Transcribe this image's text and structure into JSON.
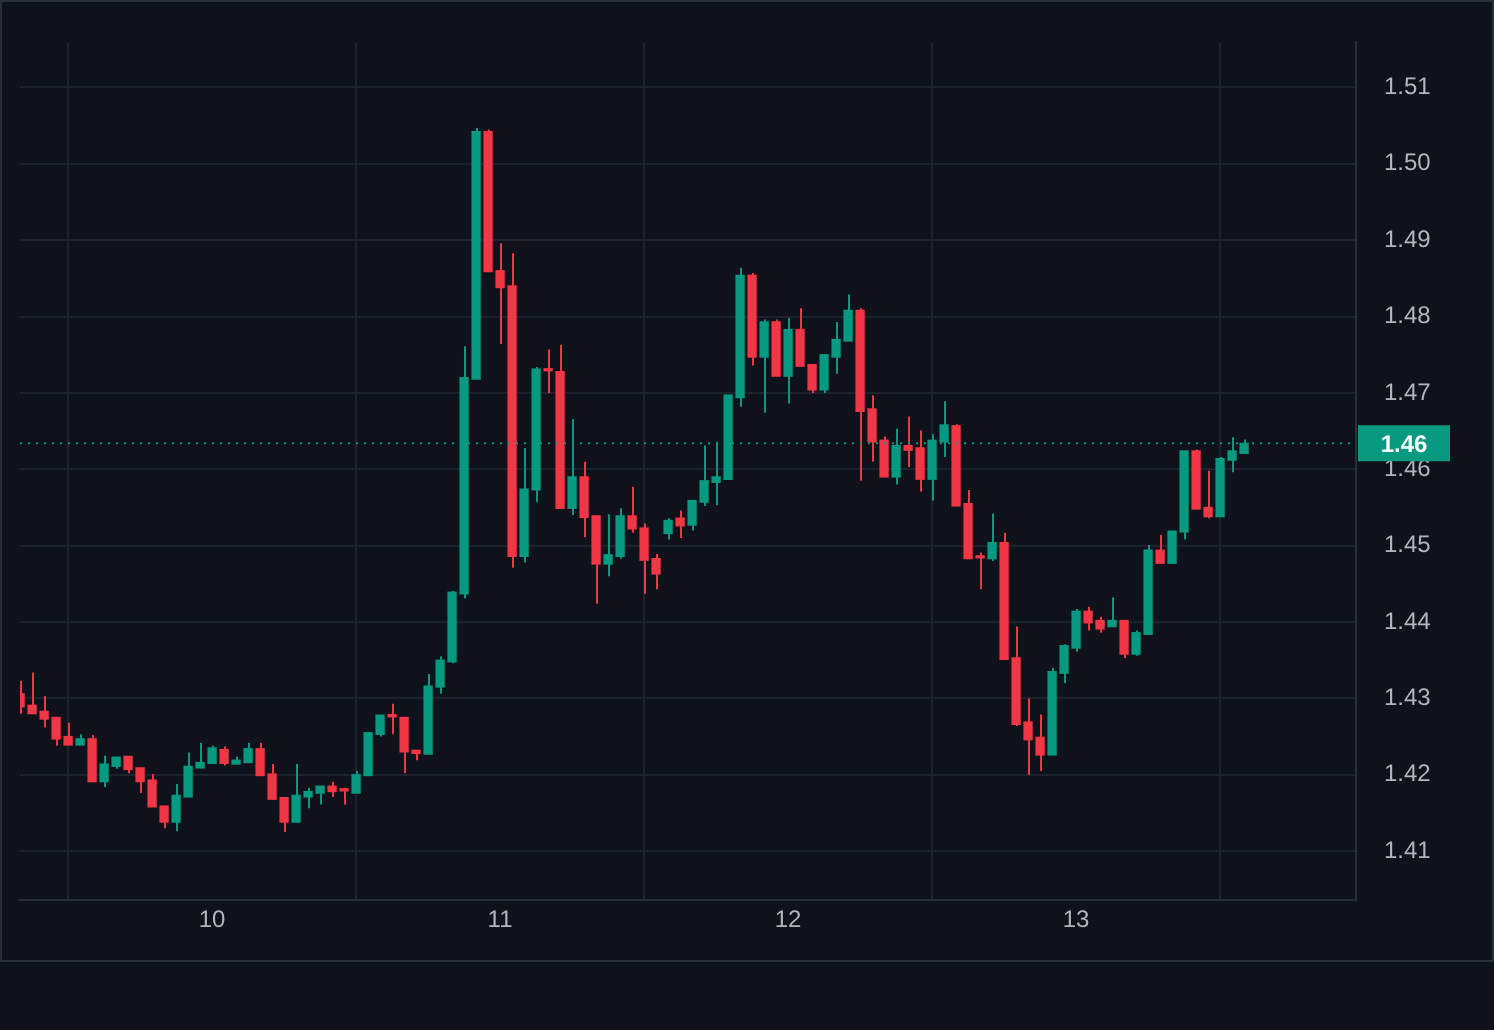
{
  "chart_data": {
    "type": "candlestick",
    "x": [
      9.3333,
      9.375,
      9.4167,
      9.4583,
      9.5,
      9.5417,
      9.5833,
      9.625,
      9.6667,
      9.7083,
      9.75,
      9.7917,
      9.8333,
      9.875,
      9.9167,
      9.9583,
      10,
      10.0417,
      10.0833,
      10.125,
      10.1667,
      10.2083,
      10.25,
      10.2917,
      10.3333,
      10.375,
      10.4167,
      10.4583,
      10.5,
      10.5417,
      10.5833,
      10.625,
      10.6667,
      10.7083,
      10.75,
      10.7917,
      10.8333,
      10.875,
      10.9167,
      10.9583,
      11,
      11.0417,
      11.0833,
      11.125,
      11.1667,
      11.2083,
      11.25,
      11.2917,
      11.3333,
      11.375,
      11.4167,
      11.4583,
      11.5,
      11.5417,
      11.5833,
      11.625,
      11.6667,
      11.7083,
      11.75,
      11.7917,
      11.8333,
      11.875,
      11.9167,
      11.9583,
      12,
      12.0417,
      12.0833,
      12.125,
      12.1667,
      12.2083,
      12.25,
      12.2917,
      12.3333,
      12.375,
      12.4167,
      12.4583,
      12.5,
      12.5417,
      12.5833,
      12.625,
      12.6667,
      12.7083,
      12.75,
      12.7917,
      12.8333,
      12.875,
      12.9167,
      12.9583,
      13,
      13.0417,
      13.0833,
      13.125,
      13.1667,
      13.2083,
      13.25,
      13.2917,
      13.3333,
      13.375,
      13.4167,
      13.4583,
      13.5,
      13.5417,
      13.5833
    ],
    "ohlc": [
      [
        1.4306,
        1.4323,
        1.428,
        1.4289
      ],
      [
        1.4291,
        1.4334,
        1.428,
        1.428
      ],
      [
        1.4283,
        1.4303,
        1.4262,
        1.4273
      ],
      [
        1.4275,
        1.4275,
        1.4238,
        1.4247
      ],
      [
        1.425,
        1.4268,
        1.4239,
        1.4239
      ],
      [
        1.4239,
        1.4253,
        1.4239,
        1.4247
      ],
      [
        1.4247,
        1.4252,
        1.4191,
        1.4191
      ],
      [
        1.4191,
        1.4225,
        1.4184,
        1.4214
      ],
      [
        1.4211,
        1.4223,
        1.4208,
        1.4223
      ],
      [
        1.4224,
        1.4224,
        1.4202,
        1.4207
      ],
      [
        1.4209,
        1.4209,
        1.4176,
        1.4191
      ],
      [
        1.4193,
        1.4201,
        1.4158,
        1.4158
      ],
      [
        1.4159,
        1.4159,
        1.413,
        1.4138
      ],
      [
        1.4138,
        1.4188,
        1.4126,
        1.4173
      ],
      [
        1.4171,
        1.4229,
        1.4171,
        1.4211
      ],
      [
        1.4209,
        1.4242,
        1.4209,
        1.4216
      ],
      [
        1.4215,
        1.4238,
        1.4215,
        1.4235
      ],
      [
        1.4233,
        1.4237,
        1.4212,
        1.4215
      ],
      [
        1.4214,
        1.4224,
        1.4214,
        1.4219
      ],
      [
        1.4216,
        1.4242,
        1.4216,
        1.4234
      ],
      [
        1.4234,
        1.4242,
        1.4199,
        1.4199
      ],
      [
        1.4201,
        1.4214,
        1.4168,
        1.4168
      ],
      [
        1.417,
        1.417,
        1.4125,
        1.4138
      ],
      [
        1.4138,
        1.4214,
        1.4138,
        1.4173
      ],
      [
        1.4171,
        1.4183,
        1.4156,
        1.4178
      ],
      [
        1.4176,
        1.4185,
        1.4161,
        1.4185
      ],
      [
        1.4185,
        1.4191,
        1.4171,
        1.4178
      ],
      [
        1.4181,
        1.4183,
        1.4161,
        1.4179
      ],
      [
        1.4176,
        1.4205,
        1.4176,
        1.42
      ],
      [
        1.4199,
        1.4256,
        1.4199,
        1.4255
      ],
      [
        1.4253,
        1.4278,
        1.425,
        1.4278
      ],
      [
        1.4277,
        1.4293,
        1.4253,
        1.4276
      ],
      [
        1.4275,
        1.4275,
        1.4202,
        1.423
      ],
      [
        1.4232,
        1.4232,
        1.4219,
        1.4228
      ],
      [
        1.4227,
        1.4332,
        1.4227,
        1.4316
      ],
      [
        1.4315,
        1.4355,
        1.4306,
        1.435
      ],
      [
        1.4348,
        1.4441,
        1.4346,
        1.4439
      ],
      [
        1.4437,
        1.4761,
        1.4431,
        1.472
      ],
      [
        1.4718,
        1.5047,
        1.4718,
        1.5042
      ],
      [
        1.5042,
        1.5045,
        1.4859,
        1.4859
      ],
      [
        1.486,
        1.4896,
        1.4764,
        1.4838
      ],
      [
        1.484,
        1.4883,
        1.4471,
        1.4486
      ],
      [
        1.4486,
        1.4628,
        1.4478,
        1.4574
      ],
      [
        1.4573,
        1.4734,
        1.4557,
        1.4731
      ],
      [
        1.4731,
        1.4757,
        1.47,
        1.4729
      ],
      [
        1.4728,
        1.4763,
        1.4549,
        1.4549
      ],
      [
        1.4549,
        1.4666,
        1.454,
        1.459
      ],
      [
        1.459,
        1.461,
        1.4511,
        1.4537
      ],
      [
        1.4539,
        1.4539,
        1.4424,
        1.4476
      ],
      [
        1.4476,
        1.4541,
        1.446,
        1.4488
      ],
      [
        1.4486,
        1.4549,
        1.4483,
        1.4539
      ],
      [
        1.4539,
        1.4577,
        1.4517,
        1.4522
      ],
      [
        1.4523,
        1.4529,
        1.4437,
        1.4481
      ],
      [
        1.4483,
        1.4489,
        1.4443,
        1.4463
      ],
      [
        1.4516,
        1.4536,
        1.4508,
        1.4533
      ],
      [
        1.4536,
        1.4546,
        1.451,
        1.4526
      ],
      [
        1.4527,
        1.4559,
        1.452,
        1.4559
      ],
      [
        1.4557,
        1.4631,
        1.4552,
        1.4585
      ],
      [
        1.4583,
        1.4636,
        1.4553,
        1.459
      ],
      [
        1.4587,
        1.4697,
        1.4587,
        1.4697
      ],
      [
        1.4694,
        1.4864,
        1.4682,
        1.4854
      ],
      [
        1.4854,
        1.4857,
        1.4736,
        1.4747
      ],
      [
        1.4747,
        1.4796,
        1.4674,
        1.4793
      ],
      [
        1.4793,
        1.4796,
        1.4722,
        1.4722
      ],
      [
        1.4722,
        1.4798,
        1.4686,
        1.4783
      ],
      [
        1.4783,
        1.4811,
        1.4735,
        1.4735
      ],
      [
        1.4737,
        1.4737,
        1.47,
        1.4704
      ],
      [
        1.4704,
        1.475,
        1.47,
        1.475
      ],
      [
        1.4747,
        1.4793,
        1.4725,
        1.477
      ],
      [
        1.4768,
        1.4829,
        1.4768,
        1.4808
      ],
      [
        1.4808,
        1.4811,
        1.4585,
        1.4676
      ],
      [
        1.4679,
        1.4697,
        1.461,
        1.4636
      ],
      [
        1.4638,
        1.4643,
        1.459,
        1.459
      ],
      [
        1.459,
        1.4653,
        1.458,
        1.4631
      ],
      [
        1.4631,
        1.4669,
        1.4603,
        1.4625
      ],
      [
        1.4628,
        1.4651,
        1.4571,
        1.4587
      ],
      [
        1.4587,
        1.4646,
        1.4559,
        1.4638
      ],
      [
        1.4636,
        1.4689,
        1.4616,
        1.4658
      ],
      [
        1.4657,
        1.4659,
        1.4552,
        1.4552
      ],
      [
        1.4555,
        1.4573,
        1.4483,
        1.4483
      ],
      [
        1.4485,
        1.4491,
        1.4443,
        1.4484
      ],
      [
        1.4483,
        1.4542,
        1.448,
        1.4504
      ],
      [
        1.4504,
        1.4517,
        1.4351,
        1.4351
      ],
      [
        1.4353,
        1.4394,
        1.4264,
        1.4266
      ],
      [
        1.4269,
        1.43,
        1.42,
        1.4246
      ],
      [
        1.4249,
        1.4279,
        1.4205,
        1.4226
      ],
      [
        1.4226,
        1.434,
        1.4226,
        1.4335
      ],
      [
        1.4333,
        1.4371,
        1.432,
        1.4369
      ],
      [
        1.4366,
        1.4417,
        1.4361,
        1.4414
      ],
      [
        1.4414,
        1.442,
        1.4389,
        1.4399
      ],
      [
        1.4402,
        1.4407,
        1.4386,
        1.4391
      ],
      [
        1.4394,
        1.4432,
        1.4394,
        1.4402
      ],
      [
        1.4402,
        1.4402,
        1.4353,
        1.4358
      ],
      [
        1.4358,
        1.4389,
        1.4356,
        1.4386
      ],
      [
        1.4384,
        1.4501,
        1.4384,
        1.4494
      ],
      [
        1.4494,
        1.4514,
        1.4477,
        1.4477
      ],
      [
        1.4477,
        1.4519,
        1.4477,
        1.4519
      ],
      [
        1.4518,
        1.4624,
        1.4508,
        1.4624
      ],
      [
        1.4624,
        1.4626,
        1.4548,
        1.4548
      ],
      [
        1.455,
        1.4598,
        1.4536,
        1.4538
      ],
      [
        1.4538,
        1.4616,
        1.4538,
        1.4614
      ],
      [
        1.4612,
        1.4642,
        1.4596,
        1.4624
      ],
      [
        1.4621,
        1.4639,
        1.4621,
        1.4634
      ]
    ],
    "colors": [
      "#f23645",
      "#f23645",
      "#f23645",
      "#f23645",
      "#f23645",
      "#089981",
      "#f23645",
      "#089981",
      "#089981",
      "#f23645",
      "#f23645",
      "#f23645",
      "#f23645",
      "#089981",
      "#089981",
      "#089981",
      "#089981",
      "#f23645",
      "#089981",
      "#089981",
      "#f23645",
      "#f23645",
      "#f23645",
      "#089981",
      "#089981",
      "#089981",
      "#f23645",
      "#f23645",
      "#089981",
      "#089981",
      "#089981",
      "#f23645",
      "#f23645",
      "#f23645",
      "#089981",
      "#089981",
      "#089981",
      "#089981",
      "#089981",
      "#f23645",
      "#f23645",
      "#f23645",
      "#089981",
      "#089981",
      "#f23645",
      "#f23645",
      "#089981",
      "#f23645",
      "#f23645",
      "#089981",
      "#089981",
      "#f23645",
      "#f23645",
      "#f23645",
      "#089981",
      "#f23645",
      "#089981",
      "#089981",
      "#089981",
      "#089981",
      "#089981",
      "#f23645",
      "#089981",
      "#f23645",
      "#089981",
      "#f23645",
      "#f23645",
      "#089981",
      "#089981",
      "#089981",
      "#f23645",
      "#f23645",
      "#f23645",
      "#089981",
      "#f23645",
      "#f23645",
      "#089981",
      "#089981",
      "#f23645",
      "#f23645",
      "#f23645",
      "#089981",
      "#f23645",
      "#f23645",
      "#f23645",
      "#f23645",
      "#089981",
      "#089981",
      "#089981",
      "#f23645",
      "#f23645",
      "#089981",
      "#f23645",
      "#089981",
      "#089981",
      "#f23645",
      "#089981",
      "#089981",
      "#f23645",
      "#f23645",
      "#089981",
      "#089981",
      "#089981"
    ],
    "xlim": [
      9.333,
      13.972
    ],
    "xticks": [
      10,
      11,
      12,
      13
    ],
    "ylim": [
      1.4036,
      1.5159
    ],
    "yticks": [
      1.41,
      1.42,
      1.43,
      1.44,
      1.45,
      1.46,
      1.47,
      1.48,
      1.49,
      {
        "value": 1.5,
        "label": "1.50"
      },
      1.51
    ],
    "ref_lines": [
      {
        "axis": "y",
        "value": 1.4634,
        "label": "1.46",
        "color": "#089981",
        "line_style": "dotted"
      }
    ],
    "grid": true,
    "legend": false
  }
}
